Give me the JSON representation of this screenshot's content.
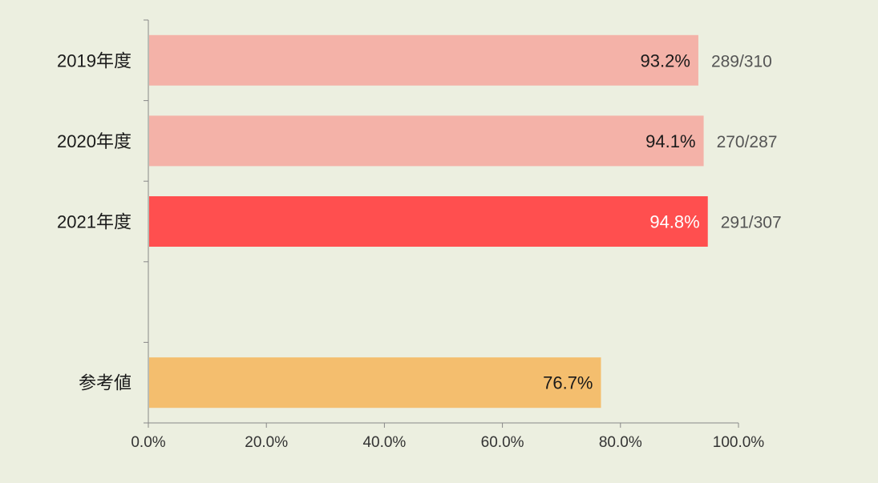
{
  "chart_data": {
    "type": "bar",
    "orientation": "horizontal",
    "categories": [
      "2019年度",
      "2020年度",
      "2021年度",
      "",
      "参考値"
    ],
    "values": [
      93.2,
      94.1,
      94.8,
      null,
      76.7
    ],
    "value_labels": [
      "93.2%",
      "94.1%",
      "94.8%",
      "",
      "76.7%"
    ],
    "ratio_labels": [
      "289/310",
      "270/287",
      "291/307",
      "",
      ""
    ],
    "highlight_index": 2,
    "colors": [
      "#F4B2A8",
      "#F4B2A8",
      "#FF4F4F",
      "#FFFFFF",
      "#F4BE6E"
    ],
    "xlim": [
      0,
      100
    ],
    "x_ticks": [
      "0.0%",
      "20.0%",
      "40.0%",
      "60.0%",
      "80.0%",
      "100.0%"
    ],
    "grid": false,
    "title": "",
    "xlabel": "",
    "ylabel": ""
  },
  "style": {
    "background": "#ECEFE0",
    "axis_color": "#888888",
    "label_dark": "#1a1a1a",
    "label_light": "#FFFFFF"
  }
}
